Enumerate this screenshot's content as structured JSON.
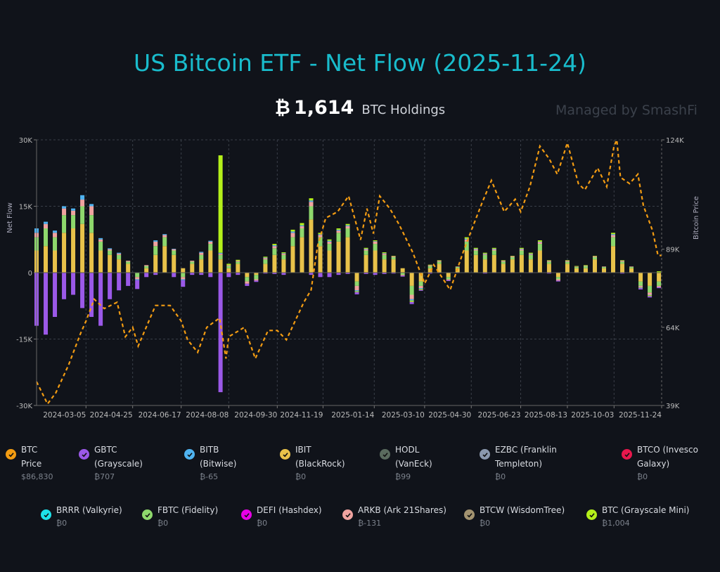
{
  "title": "US Bitcoin ETF - Net Flow (2025-11-24)",
  "holdings": {
    "symbol": "₿",
    "value": "1,614",
    "label": "BTC Holdings"
  },
  "managed_by": "Managed by SmashFi",
  "chart_data": {
    "type": "bar",
    "title": "US Bitcoin ETF - Net Flow (2025-11-24)",
    "ylabel": "Net Flow",
    "y2label": "Bitcoin Price",
    "ylim": [
      -30000,
      30000
    ],
    "y2lim": [
      39000,
      124000
    ],
    "y_ticks": [
      "30K",
      "15K",
      "0",
      "-15K",
      "-30K"
    ],
    "y2_ticks": [
      "124K",
      "89K",
      "64K",
      "39K"
    ],
    "x_ticks": [
      "2024-03-05",
      "2024-04-25",
      "2024-06-17",
      "2024-08-08",
      "2024-09-30",
      "2024-11-19",
      "2025-01-14",
      "2025-03-10",
      "2025-04-30",
      "2025-06-23",
      "2025-08-13",
      "2025-10-03",
      "2025-11-24"
    ],
    "xlim": [
      "2024-01-11",
      "2025-11-24"
    ],
    "grid": true,
    "bar_series_keys": [
      "ibit",
      "fbtc",
      "arkb",
      "bitb",
      "mini",
      "gbtc"
    ],
    "flows_unit": "K BTC",
    "flows": [
      [
        "2024-01-11",
        5,
        3,
        1,
        1,
        0,
        -12
      ],
      [
        "2024-01-21",
        6,
        4,
        1,
        0.5,
        0,
        -14
      ],
      [
        "2024-01-31",
        5,
        3,
        1,
        0.5,
        0,
        -10
      ],
      [
        "2024-02-10",
        9,
        4,
        1.5,
        0.5,
        0,
        -6
      ],
      [
        "2024-02-20",
        10,
        3,
        1,
        0.5,
        0,
        -5
      ],
      [
        "2024-03-01",
        11,
        4,
        1.5,
        1,
        0,
        -8
      ],
      [
        "2024-03-11",
        9,
        4,
        2,
        0.5,
        0,
        -10
      ],
      [
        "2024-03-21",
        5,
        2,
        0.5,
        0.3,
        0,
        -12
      ],
      [
        "2024-03-31",
        4,
        1,
        0.3,
        0.2,
        0,
        -6
      ],
      [
        "2024-04-10",
        3,
        1,
        0.3,
        0.2,
        0,
        -4
      ],
      [
        "2024-04-20",
        2,
        0.5,
        0.2,
        0,
        0,
        -3
      ],
      [
        "2024-04-30",
        0,
        -1,
        -0.5,
        -0.2,
        0,
        -2
      ],
      [
        "2024-05-10",
        1,
        0.5,
        0.2,
        0,
        0,
        -1
      ],
      [
        "2024-05-20",
        4,
        2,
        1,
        0.3,
        0,
        -0.5
      ],
      [
        "2024-05-30",
        6,
        2,
        0.5,
        0.2,
        0,
        0
      ],
      [
        "2024-06-09",
        4,
        1,
        0.3,
        0.1,
        0,
        -1
      ],
      [
        "2024-06-19",
        1,
        -1,
        -0.5,
        -0.2,
        0,
        -1.5
      ],
      [
        "2024-06-29",
        2,
        0.5,
        0.2,
        0,
        0,
        -0.5
      ],
      [
        "2024-07-09",
        3,
        1,
        0.5,
        0.2,
        0,
        -0.5
      ],
      [
        "2024-07-19",
        5,
        1.5,
        0.5,
        0.2,
        0,
        -1
      ],
      [
        "2024-07-30",
        3,
        1,
        0.3,
        0.2,
        22,
        -27
      ],
      [
        "2024-08-08",
        1,
        0.5,
        0.2,
        0,
        0.3,
        -1
      ],
      [
        "2024-08-18",
        2,
        0.5,
        0.2,
        0,
        0.2,
        -0.5
      ],
      [
        "2024-08-28",
        -1,
        -1,
        -0.5,
        0,
        0,
        -0.5
      ],
      [
        "2024-09-07",
        -0.5,
        -1,
        -0.3,
        0,
        0,
        -0.3
      ],
      [
        "2024-09-17",
        2,
        1,
        0.3,
        0.1,
        0.2,
        -0.2
      ],
      [
        "2024-09-27",
        4,
        1.5,
        0.5,
        0.2,
        0.3,
        -0.3
      ],
      [
        "2024-10-07",
        3,
        1,
        0.3,
        0.1,
        0.2,
        -0.5
      ],
      [
        "2024-10-17",
        6,
        2,
        1,
        0.3,
        0.4,
        0
      ],
      [
        "2024-10-27",
        8,
        2,
        0.5,
        0.2,
        0.5,
        0
      ],
      [
        "2024-11-06",
        12,
        3,
        1,
        0.3,
        0.5,
        -0.5
      ],
      [
        "2024-11-16",
        6,
        2,
        0.5,
        0.2,
        0.3,
        -1
      ],
      [
        "2024-11-26",
        5,
        1.5,
        0.5,
        0.2,
        0.3,
        -1
      ],
      [
        "2024-12-06",
        7,
        2,
        0.5,
        0.2,
        0.3,
        -0.5
      ],
      [
        "2024-12-16",
        8,
        2,
        0.5,
        0.2,
        0.3,
        -0.3
      ],
      [
        "2024-12-26",
        -2,
        -1,
        -1,
        -0.2,
        -0.2,
        -0.5
      ],
      [
        "2025-01-05",
        4,
        1,
        0.3,
        0.1,
        0.2,
        -0.3
      ],
      [
        "2025-01-15",
        5,
        1.5,
        0.5,
        0.1,
        0.2,
        -0.5
      ],
      [
        "2025-01-25",
        3,
        1,
        0.3,
        0.1,
        0.2,
        -0.3
      ],
      [
        "2025-02-04",
        3,
        0.5,
        0.2,
        0,
        0.1,
        -0.2
      ],
      [
        "2025-02-14",
        1,
        -0.5,
        -0.2,
        0,
        0,
        -0.2
      ],
      [
        "2025-02-24",
        -3,
        -2,
        -1,
        -0.3,
        -0.3,
        -0.5
      ],
      [
        "2025-03-06",
        -2,
        -1,
        -0.5,
        -0.2,
        -0.2,
        -0.2
      ],
      [
        "2025-03-16",
        1,
        0.5,
        0.2,
        0,
        0.1,
        -0.2
      ],
      [
        "2025-03-26",
        2,
        0.5,
        0.2,
        0,
        0.1,
        -0.1
      ],
      [
        "2025-04-05",
        -1,
        -0.5,
        -0.2,
        0,
        0,
        -0.2
      ],
      [
        "2025-04-15",
        1,
        0.3,
        0.1,
        0,
        0,
        -0.1
      ],
      [
        "2025-04-25",
        5,
        2,
        0.5,
        0.2,
        0.3,
        0
      ],
      [
        "2025-05-05",
        4,
        1,
        0.3,
        0.1,
        0.2,
        0
      ],
      [
        "2025-05-15",
        3,
        1,
        0.2,
        0.1,
        0.2,
        -0.2
      ],
      [
        "2025-05-25",
        4,
        1,
        0.3,
        0.1,
        0.2,
        -0.1
      ],
      [
        "2025-06-04",
        2,
        0.5,
        0.2,
        0,
        0.1,
        -0.1
      ],
      [
        "2025-06-14",
        3,
        0.5,
        0.2,
        0,
        0.1,
        -0.1
      ],
      [
        "2025-06-24",
        4,
        1,
        0.3,
        0.1,
        0.2,
        0
      ],
      [
        "2025-07-04",
        3,
        1,
        0.2,
        0.1,
        0.2,
        -0.1
      ],
      [
        "2025-07-14",
        5,
        1.5,
        0.4,
        0.1,
        0.3,
        0
      ],
      [
        "2025-07-24",
        2,
        0.5,
        0.2,
        0,
        0.1,
        -0.2
      ],
      [
        "2025-08-03",
        -1,
        -0.5,
        -0.3,
        0,
        0,
        -0.2
      ],
      [
        "2025-08-13",
        2,
        0.5,
        0.2,
        0,
        0.1,
        -0.1
      ],
      [
        "2025-08-23",
        1,
        0.3,
        0.1,
        0,
        0.1,
        -0.1
      ],
      [
        "2025-09-02",
        1,
        0.5,
        0.1,
        0,
        0.1,
        -0.1
      ],
      [
        "2025-09-12",
        3,
        0.5,
        0.2,
        0,
        0.1,
        -0.1
      ],
      [
        "2025-09-22",
        1,
        0.3,
        0.1,
        0,
        0,
        -0.1
      ],
      [
        "2025-10-02",
        6,
        2,
        0.5,
        0.2,
        0.3,
        0
      ],
      [
        "2025-10-12",
        2,
        0.5,
        0.2,
        0,
        0.1,
        -0.2
      ],
      [
        "2025-10-22",
        1,
        0.3,
        0.1,
        0,
        0,
        -0.1
      ],
      [
        "2025-11-01",
        -2,
        -1,
        -0.3,
        -0.1,
        -0.1,
        -0.3
      ],
      [
        "2025-11-11",
        -3,
        -1.5,
        -0.5,
        -0.1,
        -0.2,
        -0.3
      ],
      [
        "2025-11-21",
        -2,
        -1,
        -0.3,
        0,
        0.3,
        -0.2
      ]
    ],
    "price_unit": "K USD",
    "price": [
      [
        "2024-01-11",
        46.6
      ],
      [
        "2024-01-23",
        39.5
      ],
      [
        "2024-02-01",
        43
      ],
      [
        "2024-02-15",
        52
      ],
      [
        "2024-02-28",
        62
      ],
      [
        "2024-03-05",
        66
      ],
      [
        "2024-03-14",
        73
      ],
      [
        "2024-03-25",
        70
      ],
      [
        "2024-04-08",
        72
      ],
      [
        "2024-04-17",
        61
      ],
      [
        "2024-04-25",
        64
      ],
      [
        "2024-05-01",
        58
      ],
      [
        "2024-05-20",
        71
      ],
      [
        "2024-06-05",
        71
      ],
      [
        "2024-06-17",
        66
      ],
      [
        "2024-06-24",
        60
      ],
      [
        "2024-07-05",
        56
      ],
      [
        "2024-07-15",
        64
      ],
      [
        "2024-07-29",
        67
      ],
      [
        "2024-08-05",
        54
      ],
      [
        "2024-08-08",
        61
      ],
      [
        "2024-08-25",
        64
      ],
      [
        "2024-09-06",
        54
      ],
      [
        "2024-09-20",
        63
      ],
      [
        "2024-09-30",
        63
      ],
      [
        "2024-10-10",
        60
      ],
      [
        "2024-10-29",
        72
      ],
      [
        "2024-11-06",
        76
      ],
      [
        "2024-11-13",
        90
      ],
      [
        "2024-11-22",
        99
      ],
      [
        "2024-12-05",
        101
      ],
      [
        "2024-12-17",
        106
      ],
      [
        "2024-12-30",
        92
      ],
      [
        "2025-01-06",
        102
      ],
      [
        "2025-01-13",
        94
      ],
      [
        "2025-01-20",
        106
      ],
      [
        "2025-01-31",
        102
      ],
      [
        "2025-02-10",
        97
      ],
      [
        "2025-02-25",
        88
      ],
      [
        "2025-03-10",
        78
      ],
      [
        "2025-03-20",
        84
      ],
      [
        "2025-04-07",
        76
      ],
      [
        "2025-04-21",
        88
      ],
      [
        "2025-04-30",
        95
      ],
      [
        "2025-05-12",
        104
      ],
      [
        "2025-05-22",
        111
      ],
      [
        "2025-06-05",
        101
      ],
      [
        "2025-06-17",
        105
      ],
      [
        "2025-06-23",
        101
      ],
      [
        "2025-07-03",
        109
      ],
      [
        "2025-07-14",
        122
      ],
      [
        "2025-07-24",
        118
      ],
      [
        "2025-08-02",
        113
      ],
      [
        "2025-08-13",
        123
      ],
      [
        "2025-08-25",
        110
      ],
      [
        "2025-09-01",
        108
      ],
      [
        "2025-09-15",
        115
      ],
      [
        "2025-09-25",
        109
      ],
      [
        "2025-10-03",
        122
      ],
      [
        "2025-10-06",
        124
      ],
      [
        "2025-10-10",
        112
      ],
      [
        "2025-10-20",
        110
      ],
      [
        "2025-10-29",
        113
      ],
      [
        "2025-11-04",
        103
      ],
      [
        "2025-11-14",
        95
      ],
      [
        "2025-11-20",
        87
      ],
      [
        "2025-11-24",
        87
      ]
    ]
  },
  "colors": {
    "btc_price": "#f39c12",
    "gbtc": "#9b59e8",
    "bitb": "#4fb3f0",
    "ibit": "#e8c24a",
    "hodl": "#5a6b5e",
    "ezbc": "#8a98ad",
    "btco": "#e8174c",
    "brrr": "#1ee3ea",
    "fbtc": "#8ed86c",
    "defi": "#e600e6",
    "arkb": "#f0a3a0",
    "btcw": "#a39370",
    "mini": "#b4f01a"
  },
  "legend": {
    "row1": [
      {
        "key": "btc_price",
        "line1": "BTC",
        "line2": "Price",
        "value": "$86,830",
        "color": "#f39c12"
      },
      {
        "key": "gbtc",
        "line1": "GBTC",
        "line2": "(Grayscale)",
        "value": "₿707",
        "color": "#9b59e8"
      },
      {
        "key": "bitb",
        "line1": "BITB",
        "line2": "(Bitwise)",
        "value": "₿-65",
        "color": "#4fb3f0"
      },
      {
        "key": "ibit",
        "line1": "IBIT",
        "line2": "(BlackRock)",
        "value": "₿0",
        "color": "#e8c24a"
      },
      {
        "key": "hodl",
        "line1": "HODL",
        "line2": "(VanEck)",
        "value": "₿99",
        "color": "#5a6b5e"
      },
      {
        "key": "ezbc",
        "line1": "EZBC (Franklin",
        "line2": "Templeton)",
        "value": "₿0",
        "color": "#8a98ad"
      },
      {
        "key": "btco",
        "line1": "BTCO (Invesco",
        "line2": "Galaxy)",
        "value": "₿0",
        "color": "#e8174c"
      }
    ],
    "row2": [
      {
        "key": "brrr",
        "line1": "BRRR (Valkyrie)",
        "value": "₿0",
        "color": "#1ee3ea"
      },
      {
        "key": "fbtc",
        "line1": "FBTC (Fidelity)",
        "value": "₿0",
        "color": "#8ed86c"
      },
      {
        "key": "defi",
        "line1": "DEFI (Hashdex)",
        "value": "₿0",
        "color": "#e600e6"
      },
      {
        "key": "arkb",
        "line1": "ARKB (Ark 21Shares)",
        "value": "₿-131",
        "color": "#f0a3a0"
      },
      {
        "key": "btcw",
        "line1": "BTCW (WisdomTree)",
        "value": "₿0",
        "color": "#a39370"
      },
      {
        "key": "mini",
        "line1": "BTC (Grayscale Mini)",
        "value": "₿1,004",
        "color": "#b4f01a"
      }
    ]
  }
}
